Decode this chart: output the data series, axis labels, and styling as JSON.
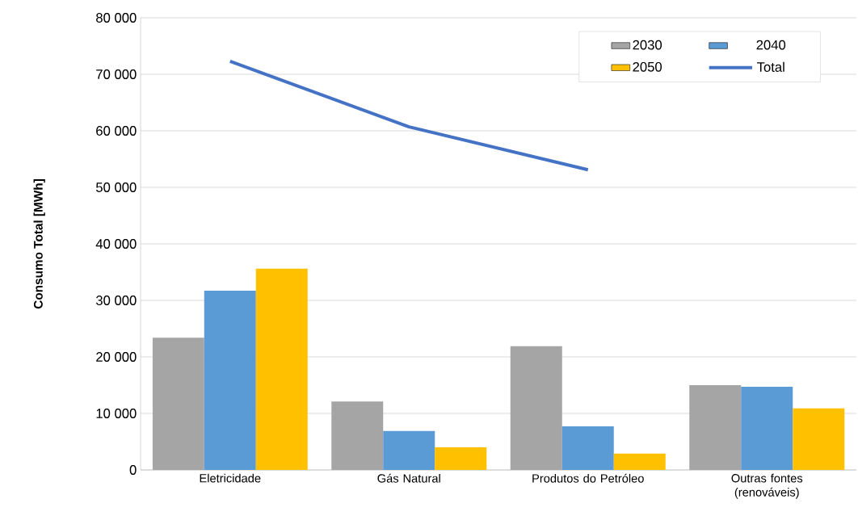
{
  "chart_data": {
    "type": "bar",
    "ylabel": "Consumo Total [MWh]",
    "categories": [
      "Eletricidade",
      "Gás Natural",
      "Produtos do Petróleo",
      "Outras fontes (renováveis)"
    ],
    "series": [
      {
        "name": "2030",
        "color": "#a5a5a5",
        "values": [
          23400,
          12100,
          21900,
          15000
        ]
      },
      {
        "name": "2040",
        "color": "#5b9bd5",
        "values": [
          31700,
          6900,
          7700,
          14700
        ]
      },
      {
        "name": "2050",
        "color": "#ffc000",
        "values": [
          35600,
          4000,
          2900,
          10900
        ]
      },
      {
        "name": "Total",
        "type": "line",
        "color": "#4472c4",
        "values": [
          72300,
          60700,
          53100,
          null
        ]
      }
    ],
    "ylim": [
      0,
      80000
    ],
    "yticks": [
      {
        "value": 0,
        "label": "0"
      },
      {
        "value": 10000,
        "label": "10 000"
      },
      {
        "value": 20000,
        "label": "20 000"
      },
      {
        "value": 30000,
        "label": "30 000"
      },
      {
        "value": 40000,
        "label": "40 000"
      },
      {
        "value": 50000,
        "label": "50 000"
      },
      {
        "value": 60000,
        "label": "60 000"
      },
      {
        "value": 70000,
        "label": "70 000"
      },
      {
        "value": 80000,
        "label": "80 000"
      }
    ],
    "grid": "y",
    "legend": "top right",
    "marker": "none",
    "line_style": "solid"
  }
}
